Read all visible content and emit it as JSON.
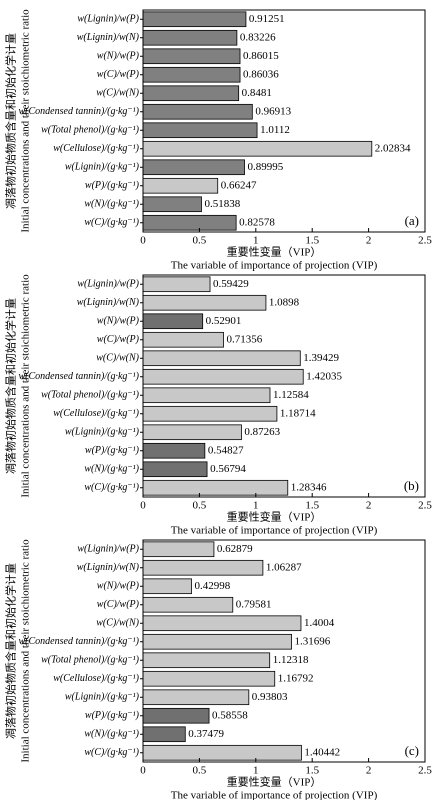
{
  "chart_data": [
    {
      "type": "bar",
      "orientation": "horizontal",
      "panel_label": "(a)",
      "y_label": [
        "凋落物初始物质含量和初始化学计量",
        "Initial concentrations and their stoichiometric ratio"
      ],
      "x_label": [
        "重要性变量（VIP）",
        "The variable of importance of projection (VIP)"
      ],
      "categories": [
        "w(Lignin)/w(P)",
        "w(Lignin)/w(N)",
        "w(N)/w(P)",
        "w(C)/w(P)",
        "w(C)/w(N)",
        "w(Condensed tannin)/(g·kg⁻¹)",
        "w(Total phenol)/(g·kg⁻¹)",
        "w(Cellulose)/(g·kg⁻¹)",
        "w(Lignin)/(g·kg⁻¹)",
        "w(P)/(g·kg⁻¹)",
        "w(N)/(g·kg⁻¹)",
        "w(C)/(g·kg⁻¹)"
      ],
      "values": [
        0.91251,
        0.83226,
        0.86015,
        0.86036,
        0.8481,
        0.96913,
        1.0112,
        2.02834,
        0.89995,
        0.66247,
        0.51838,
        0.82578
      ],
      "colors": [
        "#808080",
        "#808080",
        "#808080",
        "#808080",
        "#808080",
        "#808080",
        "#808080",
        "#c8c8c8",
        "#808080",
        "#c8c8c8",
        "#808080",
        "#808080"
      ],
      "xlim": [
        0,
        2.5
      ],
      "xticks": [
        0,
        0.5,
        1,
        1.5,
        2,
        2.5
      ]
    },
    {
      "type": "bar",
      "orientation": "horizontal",
      "panel_label": "(b)",
      "y_label": [
        "凋落物初始物质含量和初始化学计量",
        "Initial concentrations and their stoichiometric ratio"
      ],
      "x_label": [
        "重要性变量（VIP）",
        "The variable of importance of projection (VIP)"
      ],
      "categories": [
        "w(Lignin)/w(P)",
        "w(Lignin)/w(N)",
        "w(N)/w(P)",
        "w(C)/w(P)",
        "w(C)/w(N)",
        "w(Condensed tannin)/(g·kg⁻¹)",
        "w(Total phenol)/(g·kg⁻¹)",
        "w(Cellulose)/(g·kg⁻¹)",
        "w(Lignin)/(g·kg⁻¹)",
        "w(P)/(g·kg⁻¹)",
        "w(N)/(g·kg⁻¹)",
        "w(C)/(g·kg⁻¹)"
      ],
      "values": [
        0.59429,
        1.0898,
        0.52901,
        0.71356,
        1.39429,
        1.42035,
        1.12584,
        1.18714,
        0.87263,
        0.54827,
        0.56794,
        1.28346
      ],
      "colors": [
        "#c8c8c8",
        "#c8c8c8",
        "#707070",
        "#c8c8c8",
        "#c8c8c8",
        "#c8c8c8",
        "#c8c8c8",
        "#c8c8c8",
        "#c8c8c8",
        "#707070",
        "#707070",
        "#c8c8c8"
      ],
      "xlim": [
        0,
        2.5
      ],
      "xticks": [
        0,
        0.5,
        1,
        1.5,
        2,
        2.5
      ]
    },
    {
      "type": "bar",
      "orientation": "horizontal",
      "panel_label": "(c)",
      "y_label": [
        "凋落物初始物质含量和初始化学计量",
        "Initial concentrations and their stoichiometric ratio"
      ],
      "x_label": [
        "重要性变量（VIP）",
        "The variable of importance of projection (VIP)"
      ],
      "categories": [
        "w(Lignin)/w(P)",
        "w(Lignin)/w(N)",
        "w(N)/w(P)",
        "w(C)/w(P)",
        "w(C)/w(N)",
        "w(Condensed tannin)/(g·kg⁻¹)",
        "w(Total phenol)/(g·kg⁻¹)",
        "w(Cellulose)/(g·kg⁻¹)",
        "w(Lignin)/(g·kg⁻¹)",
        "w(P)/(g·kg⁻¹)",
        "w(N)/(g·kg⁻¹)",
        "w(C)/(g·kg⁻¹)"
      ],
      "values": [
        0.62879,
        1.06287,
        0.42998,
        0.79581,
        1.4004,
        1.31696,
        1.12318,
        1.16792,
        0.93803,
        0.58558,
        0.37479,
        1.40442
      ],
      "colors": [
        "#c8c8c8",
        "#c8c8c8",
        "#c8c8c8",
        "#c8c8c8",
        "#c8c8c8",
        "#c8c8c8",
        "#c8c8c8",
        "#c8c8c8",
        "#c8c8c8",
        "#707070",
        "#707070",
        "#c8c8c8"
      ],
      "xlim": [
        0,
        2.5
      ],
      "xticks": [
        0,
        0.5,
        1,
        1.5,
        2,
        2.5
      ]
    }
  ]
}
